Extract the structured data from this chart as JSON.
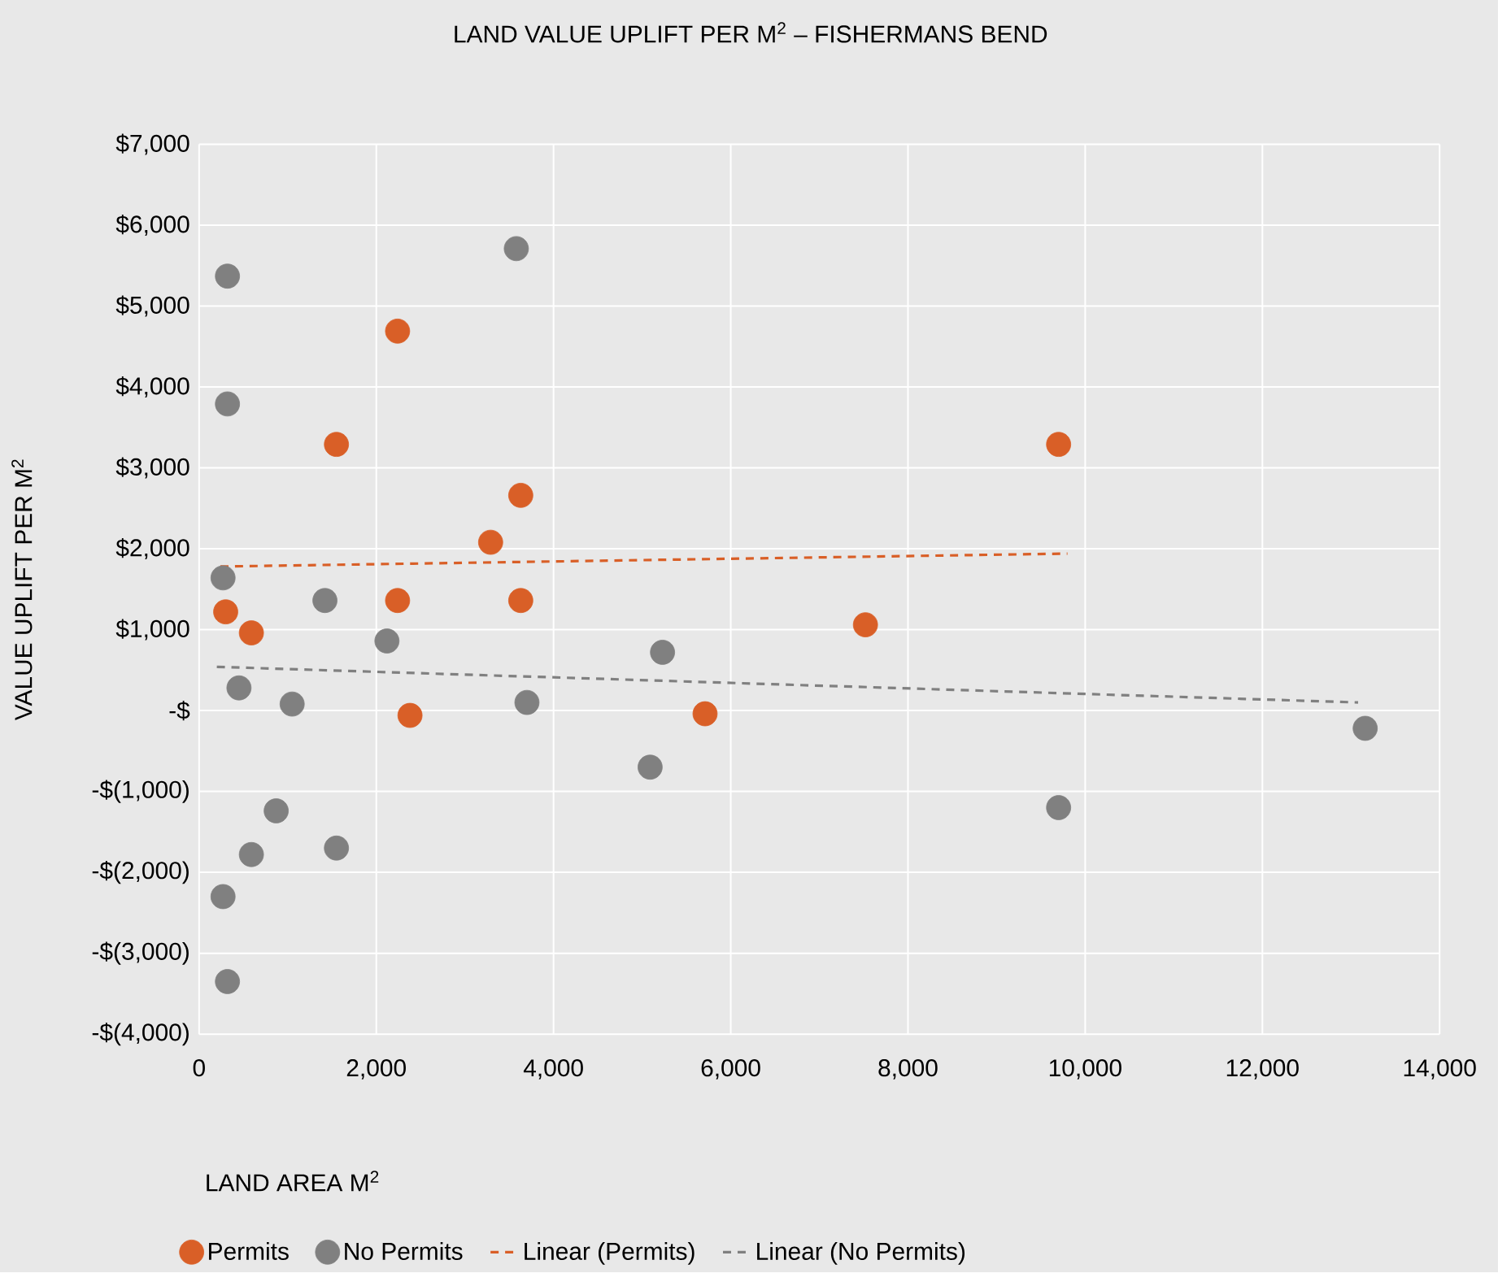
{
  "chart_data": {
    "type": "scatter",
    "title": "LAND VALUE UPLIFT PER M$^{2}$ – FISHERMANS BEND",
    "xlabel": "LAND AREA M$^{2}$",
    "ylabel": "VALUE UPLIFT PER M$^{2}$",
    "xlim": [
      0,
      14000
    ],
    "ylim": [
      -4000,
      7000
    ],
    "xticks": [
      0,
      {
        "value": 2000,
        "label": "2,000"
      },
      {
        "value": 4000,
        "label": "4,000"
      },
      {
        "value": 6000,
        "label": "6,000"
      },
      {
        "value": 8000,
        "label": "8,000"
      },
      {
        "value": 10000,
        "label": "10,000"
      },
      {
        "value": 12000,
        "label": "12,000"
      },
      {
        "value": 14000,
        "label": "14,000"
      }
    ],
    "yticks": [
      {
        "value": -4000,
        "label": "-$(4,000)"
      },
      {
        "value": -3000,
        "label": "-$(3,000)"
      },
      {
        "value": -2000,
        "label": "-$(2,000)"
      },
      {
        "value": -1000,
        "label": "-$(1,000)"
      },
      {
        "value": 0,
        "label": "-$"
      },
      {
        "value": 1000,
        "label": "$1,000"
      },
      {
        "value": 2000,
        "label": "$2,000"
      },
      {
        "value": 3000,
        "label": "$3,000"
      },
      {
        "value": 4000,
        "label": "$4,000"
      },
      {
        "value": 5000,
        "label": "$5,000"
      },
      {
        "value": 6000,
        "label": "$6,000"
      },
      {
        "value": 7000,
        "label": "$7,000"
      }
    ],
    "grid": true,
    "legend": "bottom",
    "series": [
      {
        "name": "Permits",
        "marker": "circle",
        "color": "#d95f27",
        "x": [
          300,
          590,
          1550,
          2240,
          2240,
          2380,
          3290,
          3630,
          3630,
          5710,
          7520,
          9700
        ],
        "values": [
          1220,
          960,
          3290,
          4690,
          1360,
          -60,
          2080,
          2660,
          1360,
          -40,
          1060,
          3290
        ]
      },
      {
        "name": "No Permits",
        "marker": "circle",
        "color": "#808080",
        "x": [
          320,
          320,
          270,
          450,
          1050,
          1420,
          2120,
          3700,
          3580,
          5230,
          5090,
          870,
          590,
          1550,
          270,
          320,
          9700,
          13160
        ],
        "values": [
          5370,
          3790,
          1640,
          280,
          80,
          1360,
          860,
          100,
          5710,
          720,
          -700,
          -1240,
          -1780,
          -1700,
          -2300,
          -3350,
          -1200,
          -220
        ]
      },
      {
        "name": "Linear (Permits)",
        "type": "line",
        "line_style": "dashed",
        "marker": "none",
        "color": "#d95f27",
        "x": [
          240,
          9800
        ],
        "values": [
          1780,
          1940
        ]
      },
      {
        "name": "Linear (No Permits)",
        "type": "line",
        "line_style": "dashed",
        "marker": "none",
        "color": "#808080",
        "x": [
          200,
          13080
        ],
        "values": [
          540,
          100
        ]
      }
    ]
  }
}
